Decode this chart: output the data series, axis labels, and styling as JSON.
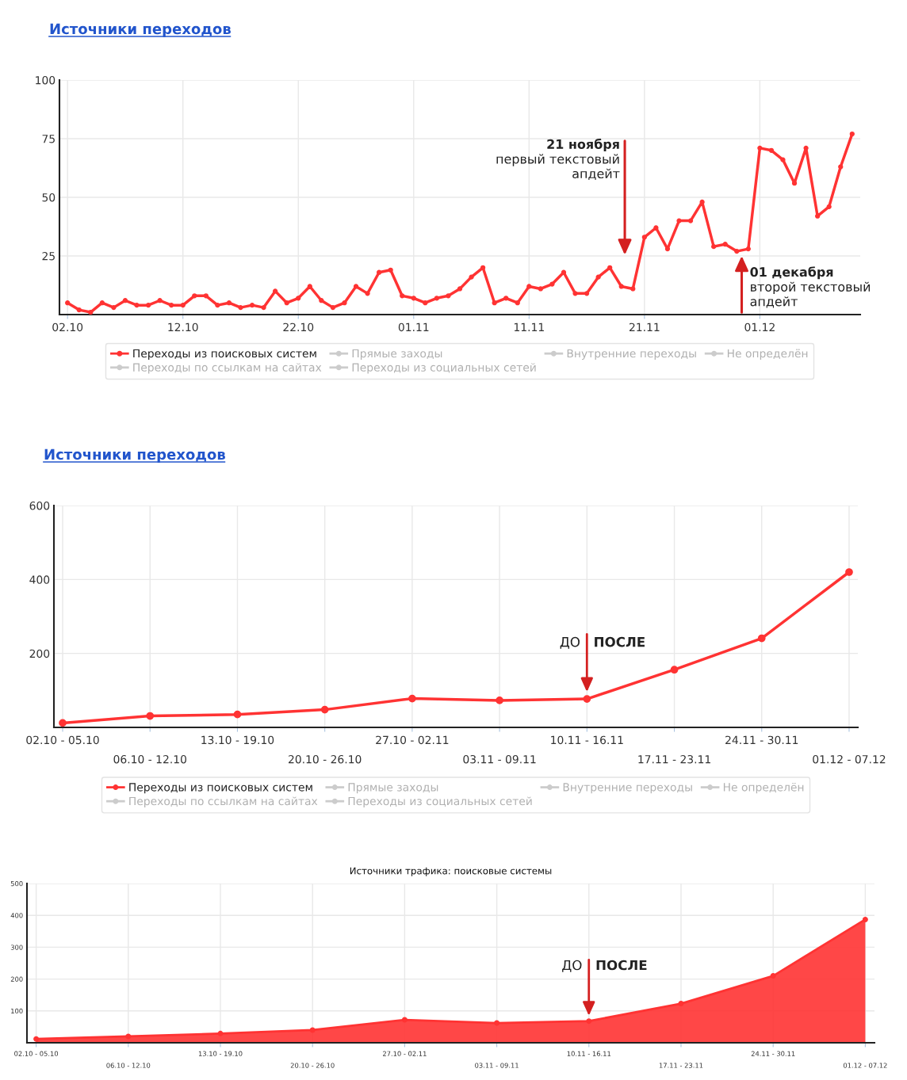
{
  "chart_data": [
    {
      "type": "line",
      "title": "Источники переходов",
      "categories": [
        "02.10",
        null,
        null,
        null,
        null,
        null,
        null,
        null,
        null,
        null,
        "12.10",
        null,
        null,
        null,
        null,
        null,
        null,
        null,
        null,
        null,
        "22.10",
        null,
        null,
        null,
        null,
        null,
        null,
        null,
        null,
        null,
        "01.11",
        null,
        null,
        null,
        null,
        null,
        null,
        null,
        null,
        null,
        "11.11",
        null,
        null,
        null,
        null,
        null,
        null,
        null,
        null,
        null,
        "21.11",
        null,
        null,
        null,
        null,
        null,
        null,
        null,
        null,
        null,
        "01.12",
        null,
        null,
        null,
        null,
        null,
        null,
        null,
        null
      ],
      "series": [
        {
          "name": "Переходы из поисковых систем",
          "color": "#ff3333",
          "values": [
            5,
            2,
            1,
            5,
            3,
            6,
            4,
            4,
            6,
            4,
            4,
            8,
            8,
            4,
            5,
            3,
            4,
            3,
            10,
            5,
            7,
            12,
            6,
            3,
            5,
            12,
            9,
            18,
            19,
            8,
            7,
            5,
            7,
            8,
            11,
            16,
            20,
            5,
            7,
            5,
            12,
            11,
            13,
            18,
            9,
            9,
            16,
            20,
            12,
            11,
            33,
            37,
            28,
            40,
            40,
            48,
            29,
            30,
            27,
            28,
            71,
            70,
            66,
            56,
            71,
            42,
            46,
            63,
            77
          ]
        },
        {
          "name": "Прямые заходы",
          "color": "#cccccc",
          "values": [
            null,
            null,
            null,
            null,
            null,
            null,
            null,
            null,
            null,
            null,
            null,
            null,
            null,
            null,
            null,
            null,
            null,
            null,
            null,
            null,
            null,
            null,
            null,
            null,
            null,
            null,
            null,
            null,
            null,
            null,
            null,
            null,
            null,
            null,
            null,
            null,
            null,
            null,
            null,
            null,
            null,
            null,
            null,
            null,
            null,
            null,
            null,
            null,
            null,
            null,
            null,
            null,
            null,
            null,
            null,
            null,
            null,
            null,
            null,
            null,
            null,
            null,
            null,
            null,
            null,
            null,
            null,
            null,
            null
          ]
        },
        {
          "name": "Внутренние переходы",
          "color": "#cccccc",
          "values": [
            null,
            null,
            null,
            null,
            null,
            null,
            null,
            null,
            null,
            null,
            null,
            null,
            null,
            null,
            null,
            null,
            null,
            null,
            null,
            null,
            null,
            null,
            null,
            null,
            null,
            null,
            null,
            null,
            null,
            null,
            null,
            null,
            null,
            null,
            null,
            null,
            null,
            null,
            null,
            null,
            null,
            null,
            null,
            null,
            null,
            null,
            null,
            null,
            null,
            null,
            null,
            null,
            null,
            null,
            null,
            null,
            null,
            null,
            null,
            null,
            null,
            null,
            null,
            null,
            null,
            null,
            null,
            null,
            null
          ]
        },
        {
          "name": "Не определён",
          "color": "#cccccc",
          "values": [
            null,
            null,
            null,
            null,
            null,
            null,
            null,
            null,
            null,
            null,
            null,
            null,
            null,
            null,
            null,
            null,
            null,
            null,
            null,
            null,
            null,
            null,
            null,
            null,
            null,
            null,
            null,
            null,
            null,
            null,
            null,
            null,
            null,
            null,
            null,
            null,
            null,
            null,
            null,
            null,
            null,
            null,
            null,
            null,
            null,
            null,
            null,
            null,
            null,
            null,
            null,
            null,
            null,
            null,
            null,
            null,
            null,
            null,
            null,
            null,
            null,
            null,
            null,
            null,
            null,
            null,
            null,
            null,
            null
          ]
        },
        {
          "name": "Переходы по ссылкам на сайтах",
          "color": "#cccccc",
          "values": [
            null,
            null,
            null,
            null,
            null,
            null,
            null,
            null,
            null,
            null,
            null,
            null,
            null,
            null,
            null,
            null,
            null,
            null,
            null,
            null,
            null,
            null,
            null,
            null,
            null,
            null,
            null,
            null,
            null,
            null,
            null,
            null,
            null,
            null,
            null,
            null,
            null,
            null,
            null,
            null,
            null,
            null,
            null,
            null,
            null,
            null,
            null,
            null,
            null,
            null,
            null,
            null,
            null,
            null,
            null,
            null,
            null,
            null,
            null,
            null,
            null,
            null,
            null,
            null,
            null,
            null,
            null,
            null,
            null
          ]
        },
        {
          "name": "Переходы из социальных сетей",
          "color": "#cccccc",
          "values": [
            null,
            null,
            null,
            null,
            null,
            null,
            null,
            null,
            null,
            null,
            null,
            null,
            null,
            null,
            null,
            null,
            null,
            null,
            null,
            null,
            null,
            null,
            null,
            null,
            null,
            null,
            null,
            null,
            null,
            null,
            null,
            null,
            null,
            null,
            null,
            null,
            null,
            null,
            null,
            null,
            null,
            null,
            null,
            null,
            null,
            null,
            null,
            null,
            null,
            null,
            null,
            null,
            null,
            null,
            null,
            null,
            null,
            null,
            null,
            null,
            null,
            null,
            null,
            null,
            null,
            null,
            null,
            null,
            null
          ]
        }
      ],
      "ylim": [
        0,
        100
      ],
      "yticks": [
        25,
        50,
        75,
        100
      ],
      "grid": true,
      "legend": "bottom",
      "marker": "circle",
      "annotations": [
        "21 ноября\nпервый текстовый\nапдейт",
        "01 декабря\nвторой текстовый\nапдейт"
      ]
    },
    {
      "type": "line",
      "title": "Источники переходов",
      "categories": [
        "02.10 - 05.10",
        "06.10 - 12.10",
        "13.10 - 19.10",
        "20.10 - 26.10",
        "27.10 - 02.11",
        "03.11 - 09.11",
        "10.11 - 16.11",
        "17.11 - 23.11",
        "24.11 - 30.11",
        "01.12 - 07.12"
      ],
      "series": [
        {
          "name": "Переходы из поисковых систем",
          "color": "#ff3333",
          "values": [
            12,
            31,
            35,
            48,
            78,
            73,
            77,
            156,
            241,
            420
          ]
        },
        {
          "name": "Прямые заходы",
          "color": "#cccccc",
          "values": [
            null,
            null,
            null,
            null,
            null,
            null,
            null,
            null,
            null,
            null
          ]
        },
        {
          "name": "Внутренние переходы",
          "color": "#cccccc",
          "values": [
            null,
            null,
            null,
            null,
            null,
            null,
            null,
            null,
            null,
            null
          ]
        },
        {
          "name": "Не определён",
          "color": "#cccccc",
          "values": [
            null,
            null,
            null,
            null,
            null,
            null,
            null,
            null,
            null,
            null
          ]
        },
        {
          "name": "Переходы по ссылкам на сайтах",
          "color": "#cccccc",
          "values": [
            null,
            null,
            null,
            null,
            null,
            null,
            null,
            null,
            null,
            null
          ]
        },
        {
          "name": "Переходы из социальных сетей",
          "color": "#cccccc",
          "values": [
            null,
            null,
            null,
            null,
            null,
            null,
            null,
            null,
            null,
            null
          ]
        }
      ],
      "ylim": [
        0,
        600
      ],
      "yticks": [
        200,
        400,
        600
      ],
      "grid": true,
      "legend": "bottom",
      "marker": "circle",
      "annotations": [
        "ДО",
        "ПОСЛЕ"
      ]
    },
    {
      "type": "area",
      "title": "Источники трафика: поисковые системы",
      "categories": [
        "02.10 - 05.10",
        "06.10 - 12.10",
        "13.10 - 19.10",
        "20.10 - 26.10",
        "27.10 - 02.11",
        "03.11 - 09.11",
        "10.11 - 16.11",
        "17.11 - 23.11",
        "24.11 - 30.11",
        "01.12 - 07.12"
      ],
      "series": [
        {
          "color": "#ff3333",
          "values": [
            12,
            20,
            29,
            40,
            72,
            62,
            68,
            123,
            210,
            387
          ]
        }
      ],
      "ylim": [
        0,
        500
      ],
      "yticks": [
        100,
        200,
        300,
        400,
        500
      ],
      "grid": true,
      "marker": "circle",
      "annotations": [
        "ДО",
        "ПОСЛЕ"
      ]
    }
  ]
}
